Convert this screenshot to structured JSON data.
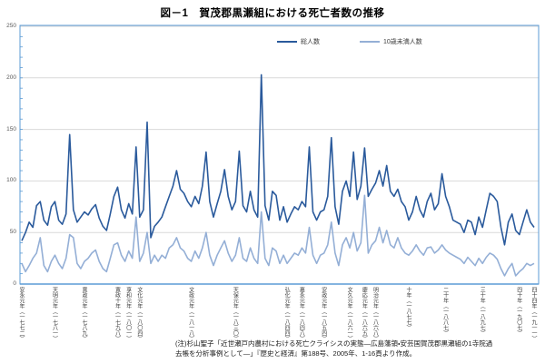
{
  "chart_data": {
    "type": "line",
    "title": "図－1　賀茂郡黒瀬組における死亡者数の推移",
    "xlabel": "",
    "ylabel": "",
    "ylim": [
      0,
      250
    ],
    "y_ticks": [
      0,
      50,
      100,
      150,
      200,
      250
    ],
    "y_minor_tick_interval": 10,
    "grid": true,
    "legend_position": "top-center-inside",
    "x_start_year": 1772,
    "x_end_year": 1911,
    "x_tick_labels": [
      {
        "year": 1772,
        "label": "安永元年（一七七二）"
      },
      {
        "year": 1781,
        "label": "天明元年（一七八一）"
      },
      {
        "year": 1789,
        "label": "寛政元年（一七八九）"
      },
      {
        "year": 1798,
        "label": "寛政十年（一七九八）"
      },
      {
        "year": 1801,
        "label": "享和元年（一八〇一）"
      },
      {
        "year": 1804,
        "label": "文化元年（一八〇四）"
      },
      {
        "year": 1818,
        "label": "文政元年（一八一八）"
      },
      {
        "year": 1830,
        "label": "天保元年（一八三〇）"
      },
      {
        "year": 1844,
        "label": "弘化元年（一八四四）"
      },
      {
        "year": 1848,
        "label": "嘉永元年（一八四八）"
      },
      {
        "year": 1854,
        "label": "安政元年（一八五四）"
      },
      {
        "year": 1861,
        "label": "文久元年（一八六一）"
      },
      {
        "year": 1865,
        "label": "慶応元年（一八六五）"
      },
      {
        "year": 1868,
        "label": "明治元年（一八六八）"
      },
      {
        "year": 1877,
        "label": "十年（一八七七）"
      },
      {
        "year": 1887,
        "label": "二十年（一八八七）"
      },
      {
        "year": 1897,
        "label": "三十年（一八九七）"
      },
      {
        "year": 1907,
        "label": "四十年（一九〇七）"
      },
      {
        "year": 1911,
        "label": "四十四年（一九一一）"
      }
    ],
    "series": [
      {
        "name": "総人数",
        "color": "#2A5A9C",
        "values": [
          42,
          50,
          60,
          55,
          76,
          80,
          62,
          57,
          75,
          80,
          62,
          58,
          68,
          145,
          72,
          60,
          65,
          70,
          67,
          73,
          77,
          64,
          56,
          52,
          68,
          85,
          94,
          72,
          64,
          78,
          68,
          133,
          65,
          72,
          157,
          45,
          56,
          60,
          65,
          75,
          85,
          95,
          110,
          92,
          88,
          80,
          75,
          85,
          78,
          95,
          128,
          80,
          65,
          78,
          90,
          111,
          85,
          72,
          80,
          129,
          76,
          70,
          90,
          72,
          65,
          203,
          76,
          62,
          90,
          86,
          62,
          75,
          60,
          68,
          75,
          72,
          80,
          75,
          133,
          70,
          62,
          70,
          72,
          85,
          142,
          75,
          58,
          90,
          100,
          85,
          128,
          82,
          95,
          132,
          85,
          92,
          98,
          110,
          95,
          115,
          90,
          85,
          92,
          80,
          75,
          62,
          70,
          85,
          72,
          65,
          80,
          88,
          72,
          78,
          107,
          85,
          75,
          62,
          60,
          58,
          50,
          62,
          60,
          48,
          65,
          55,
          72,
          88,
          85,
          80,
          55,
          38,
          60,
          68,
          52,
          48,
          60,
          72,
          60,
          55
        ]
      },
      {
        "name": "10歳未満人数",
        "color": "#94AFD6",
        "values": [
          20,
          12,
          18,
          25,
          30,
          45,
          18,
          12,
          22,
          28,
          20,
          15,
          25,
          48,
          45,
          20,
          15,
          22,
          25,
          30,
          33,
          22,
          15,
          12,
          25,
          38,
          40,
          28,
          22,
          32,
          25,
          65,
          22,
          30,
          50,
          20,
          28,
          22,
          28,
          25,
          35,
          38,
          45,
          35,
          32,
          25,
          22,
          32,
          25,
          35,
          50,
          28,
          18,
          28,
          35,
          42,
          30,
          22,
          28,
          45,
          25,
          22,
          35,
          25,
          20,
          70,
          25,
          18,
          35,
          32,
          20,
          28,
          20,
          25,
          30,
          28,
          35,
          30,
          55,
          28,
          20,
          28,
          30,
          38,
          60,
          30,
          18,
          38,
          45,
          35,
          50,
          32,
          40,
          86,
          30,
          38,
          42,
          55,
          40,
          52,
          38,
          35,
          45,
          35,
          30,
          28,
          32,
          38,
          32,
          28,
          35,
          36,
          30,
          33,
          38,
          33,
          30,
          28,
          26,
          24,
          20,
          26,
          22,
          18,
          25,
          20,
          26,
          30,
          28,
          24,
          15,
          8,
          15,
          20,
          8,
          12,
          15,
          20,
          18,
          20
        ]
      }
    ],
    "colors": {
      "grid": "#D9D9D9",
      "plot_border": "#5B9BD5",
      "axis_text": "#595959"
    }
  },
  "note": {
    "line1": "(注)杉山聖子「近世瀬戸内農村における死亡クライシスの実態―広島藩領・安芸国賀茂郡黒瀬組の1寺院過",
    "line2": "去帳を分析事例として―」『歴史と経済』第188号、2005年、1-16頁より作成。"
  }
}
